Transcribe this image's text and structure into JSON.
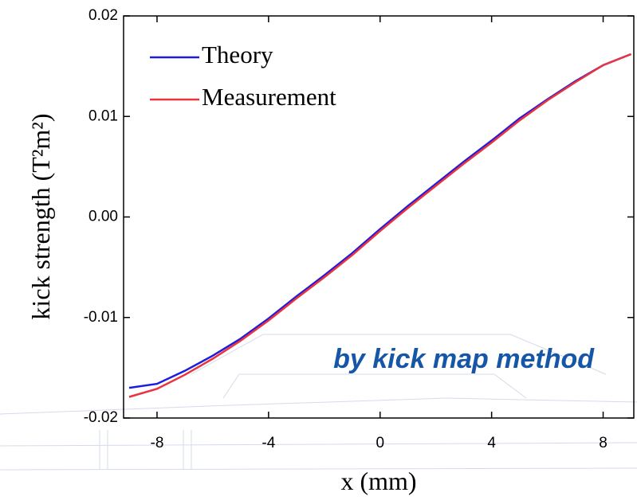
{
  "chart_data": {
    "type": "line",
    "x_label": "x (mm)",
    "y_label": "kick strength  (T²m²)",
    "annotation": "by kick map method",
    "x": [
      -9,
      -8,
      -7,
      -6,
      -5,
      -4,
      -3,
      -2,
      -1,
      0,
      1,
      2,
      3,
      4,
      5,
      6,
      7,
      8,
      9
    ],
    "series": [
      {
        "name": "Theory",
        "color": "#1c1ce0",
        "values": [
          -0.017,
          -0.0166,
          -0.0153,
          -0.0138,
          -0.0121,
          -0.0101,
          -0.0079,
          -0.0058,
          -0.0036,
          -0.0012,
          0.0011,
          0.0033,
          0.0055,
          0.0076,
          0.0098,
          0.0117,
          0.0135,
          0.0151,
          0.0162
        ]
      },
      {
        "name": "Measurement",
        "color": "#e8343f",
        "values": [
          -0.0179,
          -0.0171,
          -0.0157,
          -0.0141,
          -0.0123,
          -0.0103,
          -0.0081,
          -0.006,
          -0.0038,
          -0.0014,
          0.0009,
          0.0031,
          0.0053,
          0.0074,
          0.0096,
          0.0116,
          0.0134,
          0.0151,
          0.0162
        ]
      }
    ],
    "xlim": [
      -9.2,
      9.1
    ],
    "ylim": [
      -0.02,
      0.02
    ],
    "xticks": [
      -8,
      -4,
      0,
      4,
      8
    ],
    "yticks": [
      -0.02,
      -0.01,
      {
        "value": 0,
        "label": "0.00"
      },
      0.01,
      0.02
    ],
    "legend": "upper left",
    "grid": false
  }
}
